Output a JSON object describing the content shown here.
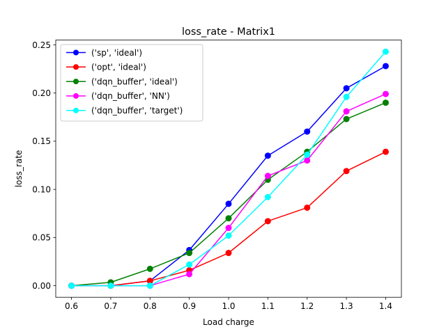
{
  "chart_data": {
    "type": "line",
    "title": "loss_rate - Matrix1",
    "xlabel": "Load charge",
    "ylabel": "loss_rate",
    "x": [
      0.6,
      0.7,
      0.8,
      0.9,
      1.0,
      1.1,
      1.2,
      1.3,
      1.4
    ],
    "x_tick_labels": [
      "0.6",
      "0.7",
      "0.8",
      "0.9",
      "1.0",
      "1.1",
      "1.2",
      "1.3",
      "1.4"
    ],
    "y_ticks": [
      0.0,
      0.05,
      0.1,
      0.15,
      0.2,
      0.25
    ],
    "y_tick_labels": [
      "0.00",
      "0.05",
      "0.10",
      "0.15",
      "0.20",
      "0.25"
    ],
    "xlim": [
      0.56,
      1.44
    ],
    "ylim": [
      -0.012,
      0.255
    ],
    "grid": false,
    "legend_position": "top-left",
    "series": [
      {
        "name": "('sp', 'ideal')",
        "color": "#0000ff",
        "marker": "circle",
        "values": [
          0.0,
          0.0,
          0.005,
          0.037,
          0.085,
          0.135,
          0.16,
          0.205,
          0.228
        ]
      },
      {
        "name": "('opt', 'ideal')",
        "color": "#ff0000",
        "marker": "circle",
        "values": [
          0.0,
          0.0,
          0.005,
          0.016,
          0.034,
          0.067,
          0.081,
          0.119,
          0.139
        ]
      },
      {
        "name": "('dqn_buffer', 'ideal')",
        "color": "#008000",
        "marker": "circle",
        "values": [
          0.0,
          0.0035,
          0.0175,
          0.034,
          0.07,
          0.11,
          0.139,
          0.173,
          0.19
        ]
      },
      {
        "name": "('dqn_buffer', 'NN')",
        "color": "#ff00ff",
        "marker": "circle",
        "values": [
          0.0,
          0.0,
          0.0,
          0.012,
          0.06,
          0.114,
          0.13,
          0.181,
          0.199
        ]
      },
      {
        "name": "('dqn_buffer', 'target')",
        "color": "#00ffff",
        "marker": "circle",
        "values": [
          0.0,
          0.0,
          0.0,
          0.022,
          0.052,
          0.092,
          0.136,
          0.196,
          0.243
        ]
      }
    ]
  }
}
